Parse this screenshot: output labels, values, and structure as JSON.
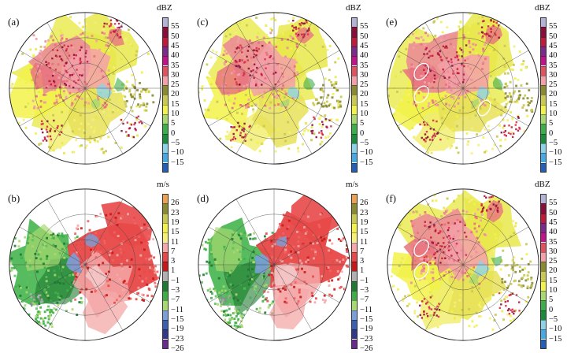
{
  "figure": {
    "panels": [
      {
        "label": "(a)",
        "kind": "reflectivity",
        "seed": 11,
        "ellipses": false
      },
      {
        "label": "(b)",
        "kind": "velocity",
        "seed": 23,
        "ellipses": false
      },
      {
        "label": "(c)",
        "kind": "reflectivity",
        "seed": 37,
        "ellipses": false
      },
      {
        "label": "(d)",
        "kind": "velocity",
        "seed": 53,
        "ellipses": false
      },
      {
        "label": "(e)",
        "kind": "reflectivity",
        "seed": 71,
        "ellipses": true
      },
      {
        "label": "(f)",
        "kind": "reflectivity",
        "seed": 89,
        "ellipses": true
      }
    ],
    "colorbars": {
      "reflectivity": {
        "unit": "dBZ",
        "ticks": [
          "55",
          "50",
          "45",
          "40",
          "35",
          "30",
          "25",
          "20",
          "15",
          "10",
          "5",
          "0",
          "−5",
          "−10",
          "−15"
        ],
        "colors": [
          "#b3b3da",
          "#8a0e3a",
          "#c01a3c",
          "#7b2a8e",
          "#c0158a",
          "#e0525e",
          "#f4a0a8",
          "#8a8a32",
          "#c8c852",
          "#f2f24a",
          "#a8d870",
          "#3fae48",
          "#1a8c3a",
          "#8ed2e8",
          "#48a8e0",
          "#2060b8"
        ]
      },
      "velocity": {
        "unit": "m/s",
        "ticks": [
          "26",
          "23",
          "19",
          "15",
          "11",
          "7",
          "3",
          "1",
          "−1",
          "−3",
          "−7",
          "−11",
          "−15",
          "−19",
          "−23",
          "−26"
        ],
        "colors": [
          "#f0a050",
          "#8a8a32",
          "#c8c852",
          "#f2f24a",
          "#f8f070",
          "#f4a8a8",
          "#e84848",
          "#c81818",
          "#b0b0b0",
          "#1e7a30",
          "#3fae48",
          "#a8d870",
          "#7aa0d8",
          "#3a60b0",
          "#303a88",
          "#6a2a90"
        ]
      }
    }
  }
}
